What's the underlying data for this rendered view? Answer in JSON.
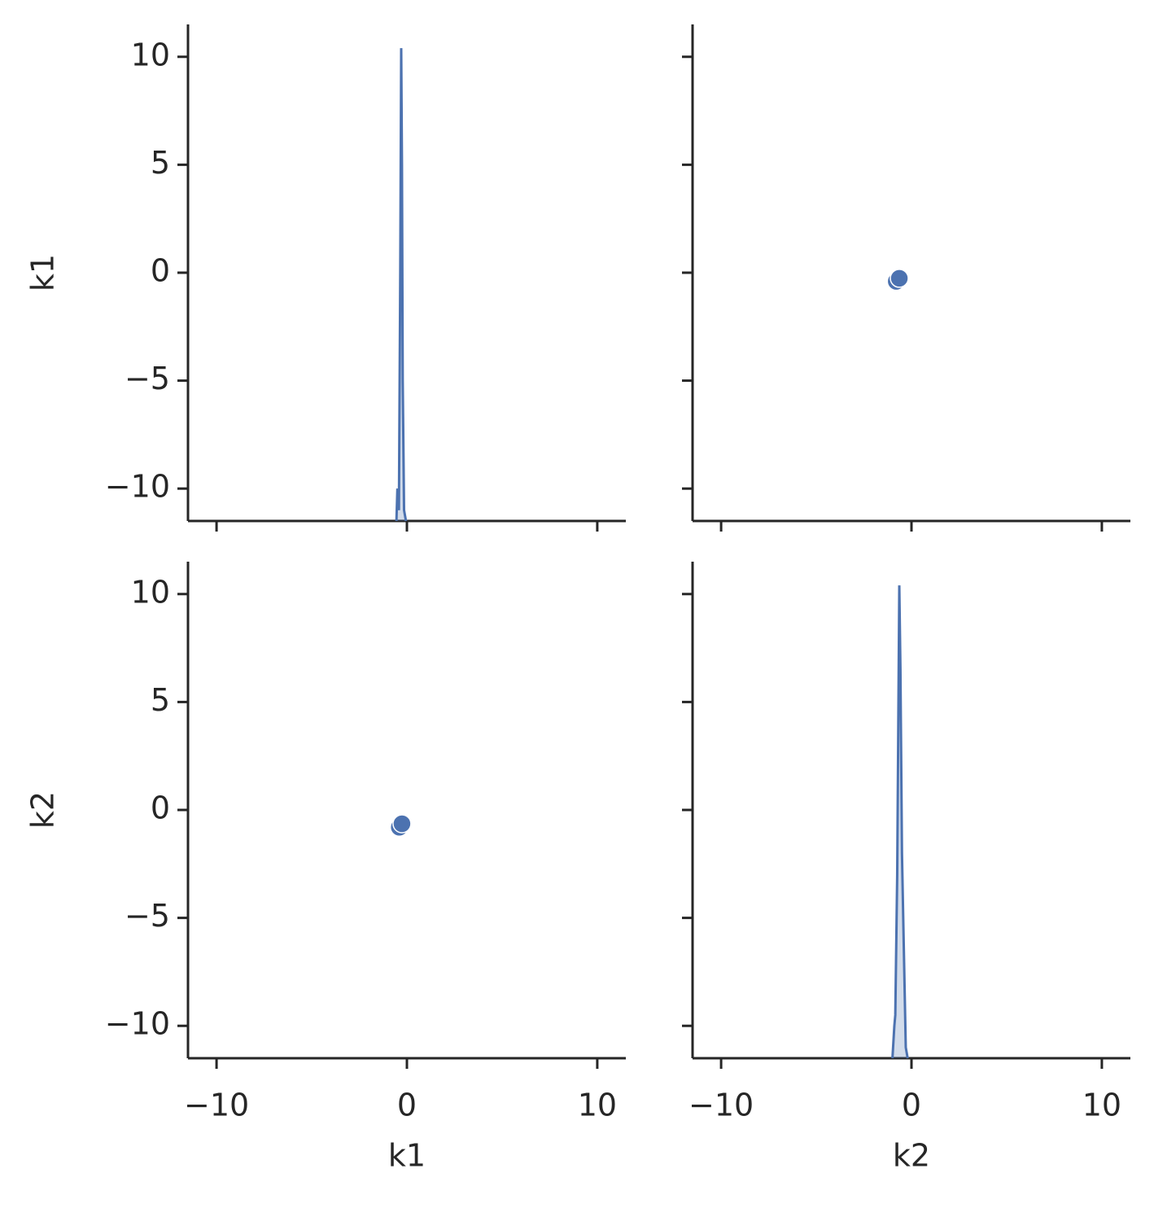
{
  "chart_data": {
    "type": "pairplot",
    "variables": [
      "k1",
      "k2"
    ],
    "color": "#4c72b0",
    "xlim": [
      -11.5,
      11.5
    ],
    "ylim": [
      -11.5,
      11.5
    ],
    "xticks": [
      {
        "value": -10,
        "label": "−10"
      },
      0,
      10
    ],
    "yticks": [
      {
        "value": -10,
        "label": "−10"
      },
      {
        "value": -5,
        "label": "−5"
      },
      0,
      5,
      10
    ],
    "points": {
      "k1": [
        -0.4,
        -0.26
      ],
      "k2": [
        -0.8,
        -0.64
      ]
    },
    "kde": [
      {
        "x": [
          -0.55,
          -0.5,
          -0.42,
          -0.35,
          -0.3,
          -0.26,
          -0.22,
          -0.15,
          -0.05
        ],
        "y": [
          -11.5,
          -10,
          -11,
          0,
          10.4,
          5,
          -5,
          -11,
          -11.5
        ]
      },
      {
        "x": [
          -1.0,
          -0.9,
          -0.85,
          -0.75,
          -0.64,
          -0.58,
          -0.5,
          -0.3,
          -0.2
        ],
        "y": [
          -11.5,
          -10,
          -9.5,
          -3,
          10.4,
          6.5,
          -2,
          -11,
          -11.5
        ]
      }
    ]
  }
}
